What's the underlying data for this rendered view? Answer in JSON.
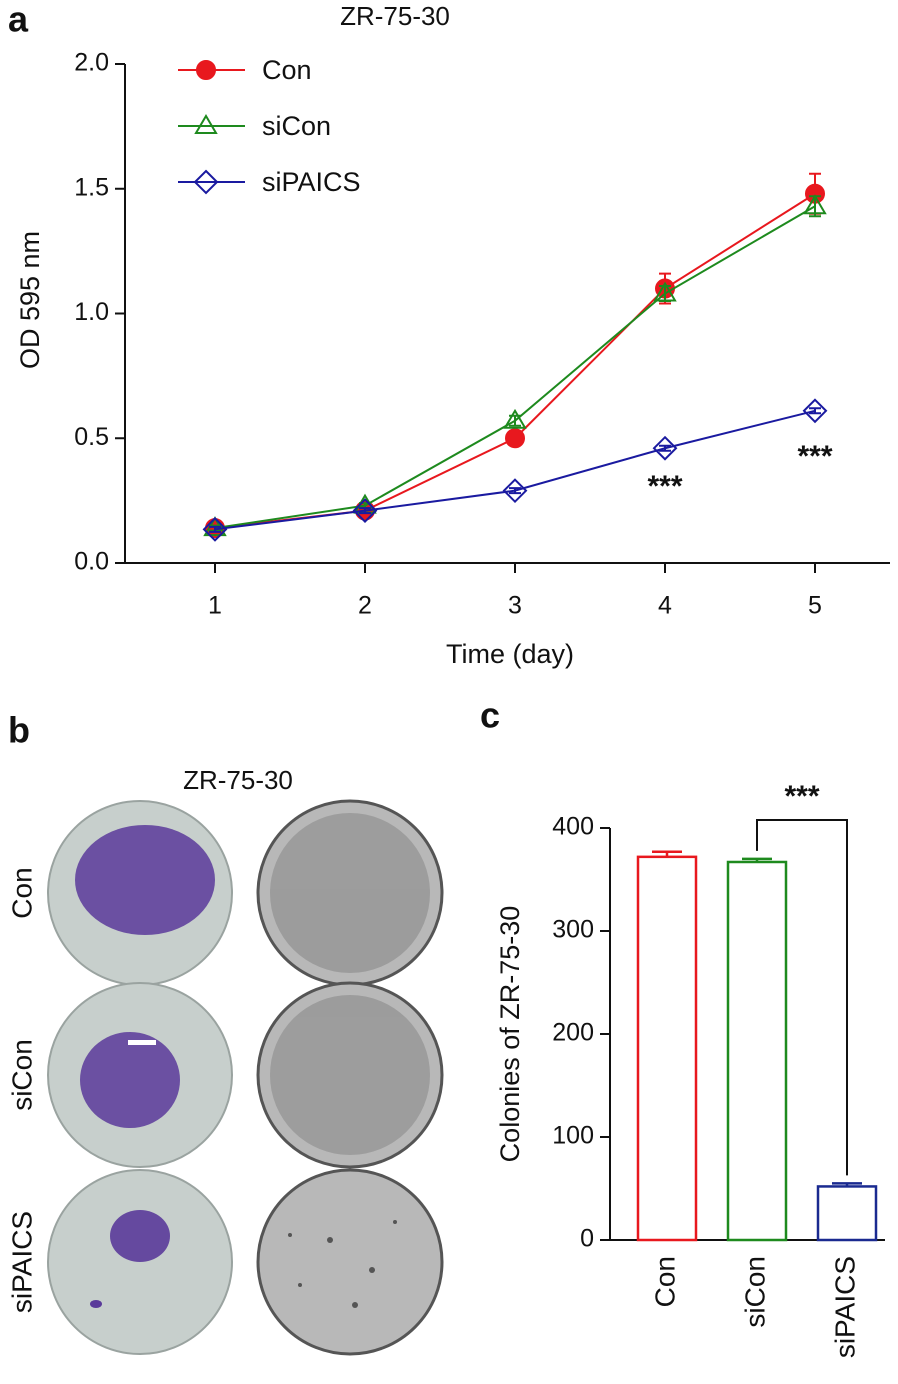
{
  "panel_labels": [
    "a",
    "b",
    "c"
  ],
  "chart_data": [
    {
      "type": "line",
      "title": "ZR-75-30",
      "x_label": "Time (day)",
      "y_label": "OD 595 nm",
      "x": [
        1,
        2,
        3,
        4,
        5
      ],
      "series": [
        {
          "name": "Con",
          "color": "#e8181e",
          "marker": "filled-circle",
          "values": [
            0.14,
            0.21,
            0.5,
            1.1,
            1.48
          ],
          "errors": [
            0.01,
            0.01,
            0.02,
            0.06,
            0.08
          ]
        },
        {
          "name": "siCon",
          "color": "#1e8a1e",
          "marker": "open-triangle",
          "values": [
            0.14,
            0.23,
            0.57,
            1.08,
            1.43
          ],
          "errors": [
            0.01,
            0.01,
            0.02,
            0.03,
            0.04
          ]
        },
        {
          "name": "siPAICS",
          "color": "#1a1aa0",
          "marker": "open-diamond",
          "values": [
            0.135,
            0.21,
            0.29,
            0.46,
            0.61
          ],
          "errors": [
            0.01,
            0.01,
            0.01,
            0.01,
            0.01
          ]
        }
      ],
      "annotations": [
        "***",
        "***"
      ],
      "xlim": [
        0.4,
        5.5
      ],
      "xticks": [
        1,
        2,
        3,
        4,
        5
      ],
      "ylim": [
        0,
        2
      ],
      "yticks": [
        {
          "value": 0,
          "label": "0.0"
        },
        0.5,
        {
          "value": 1,
          "label": "1.0"
        },
        1.5,
        {
          "value": 2,
          "label": "2.0"
        }
      ]
    },
    {
      "type": "image-grid",
      "title": "ZR-75-30",
      "row_labels": [
        "Con",
        "siCon",
        "siPAICS"
      ]
    },
    {
      "type": "bar",
      "y_label": "Colonies of ZR-75-30",
      "categories": [
        "Con",
        "siCon",
        "siPAICS"
      ],
      "colors": [
        "#e8181e",
        "#1e8a1e",
        "#1a2a90"
      ],
      "values": [
        372,
        367,
        52
      ],
      "errors": [
        5,
        3,
        3
      ],
      "annotations": [
        "***"
      ],
      "ylim": [
        0,
        400
      ],
      "yticks": [
        0,
        100,
        200,
        300,
        400
      ]
    }
  ]
}
